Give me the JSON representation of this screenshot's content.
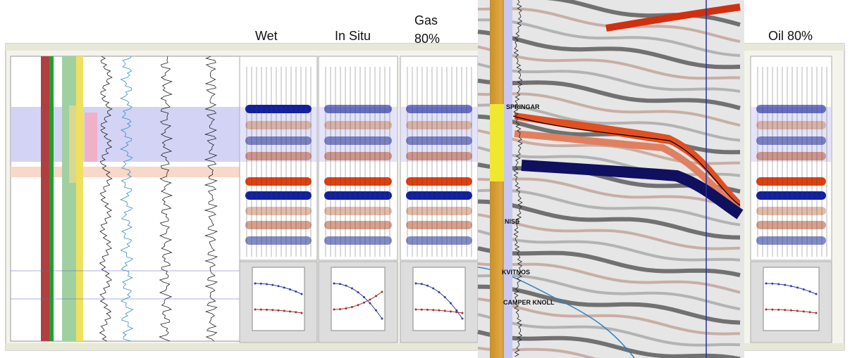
{
  "panels": {
    "wet": "Wet",
    "in_situ": "In Situ",
    "gas": "Gas 80%",
    "oil": "Oil 80%"
  },
  "horizons": [
    "SPRINGAR",
    "NISE",
    "KVITNOS",
    "CAMPER KNOLL"
  ]
}
